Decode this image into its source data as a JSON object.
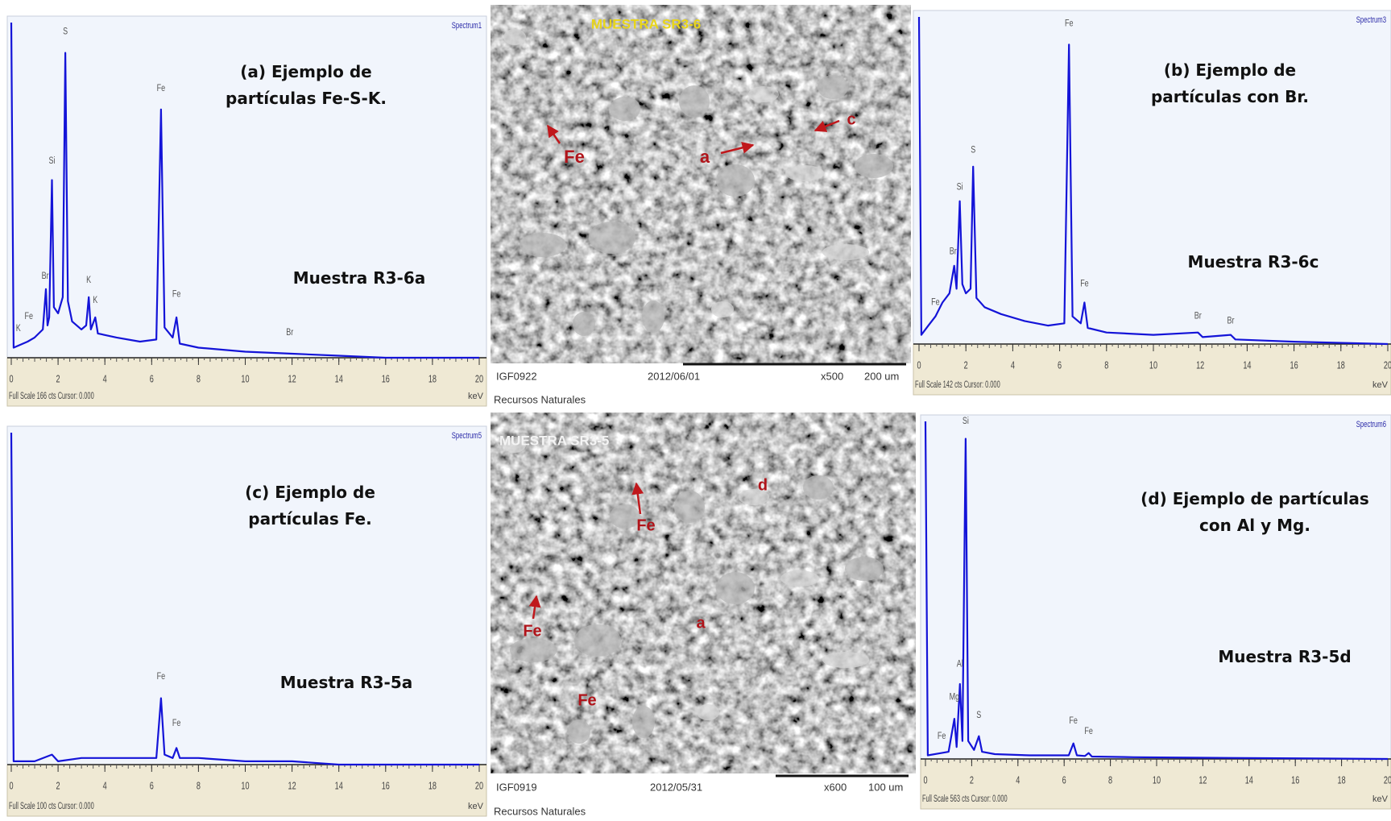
{
  "chart_data": [
    {
      "type": "line",
      "title": "(a) Ejemplo de partículas Fe-S-K.",
      "subtitle": "Muestra R3-6a",
      "spectrum_label": "Spectrum1",
      "footer": "Full Scale 166 cts Cursor: 0.000",
      "x_unit": "keV",
      "color": "#1414d8",
      "xlim": [
        0,
        20
      ],
      "xticks": [
        0,
        2,
        4,
        6,
        8,
        10,
        12,
        14,
        16,
        18,
        20
      ],
      "ylim": [
        0,
        166
      ],
      "x": [
        0,
        0.1,
        0.3,
        0.7,
        1.0,
        1.35,
        1.48,
        1.55,
        1.62,
        1.74,
        1.82,
        2.0,
        2.2,
        2.31,
        2.42,
        2.6,
        3.0,
        3.2,
        3.31,
        3.4,
        3.59,
        3.7,
        4.5,
        5.5,
        6.2,
        6.4,
        6.55,
        6.9,
        7.06,
        7.2,
        8,
        10,
        12,
        14,
        16,
        20
      ],
      "values": [
        166,
        5,
        6,
        8,
        10,
        14,
        34,
        16,
        20,
        88,
        25,
        22,
        30,
        151,
        28,
        18,
        14,
        16,
        30,
        14,
        20,
        12,
        10,
        8,
        9,
        123,
        15,
        10,
        20,
        7,
        5,
        3,
        2,
        1,
        0,
        0
      ],
      "annotations": [
        {
          "text": "K",
          "x": 0.3,
          "y": 12
        },
        {
          "text": "Fe",
          "x": 0.75,
          "y": 18
        },
        {
          "text": "Br",
          "x": 1.45,
          "y": 38
        },
        {
          "text": "Si",
          "x": 1.74,
          "y": 95
        },
        {
          "text": "S",
          "x": 2.31,
          "y": 159
        },
        {
          "text": "K",
          "x": 3.31,
          "y": 36
        },
        {
          "text": "K",
          "x": 3.59,
          "y": 26
        },
        {
          "text": "Fe",
          "x": 6.4,
          "y": 131
        },
        {
          "text": "Fe",
          "x": 7.06,
          "y": 29
        },
        {
          "text": "Br",
          "x": 11.9,
          "y": 10
        }
      ]
    },
    {
      "type": "line",
      "title": "(b) Ejemplo de partículas con Br.",
      "subtitle": "Muestra R3-6c",
      "spectrum_label": "Spectrum3",
      "footer": "Full Scale 142 cts Cursor: 0.000",
      "x_unit": "keV",
      "color": "#1414d8",
      "xlim": [
        0,
        20
      ],
      "xticks": [
        0,
        2,
        4,
        6,
        8,
        10,
        12,
        14,
        16,
        18,
        20
      ],
      "ylim": [
        0,
        142
      ],
      "x": [
        0,
        0.1,
        0.4,
        0.7,
        1.0,
        1.3,
        1.5,
        1.6,
        1.74,
        1.85,
        2.0,
        2.2,
        2.31,
        2.45,
        2.8,
        3.5,
        4.5,
        5.5,
        6.2,
        6.4,
        6.55,
        6.9,
        7.06,
        7.2,
        8,
        10,
        11.9,
        12.1,
        13.3,
        13.5,
        16,
        20
      ],
      "values": [
        142,
        4,
        8,
        12,
        18,
        22,
        34,
        24,
        62,
        26,
        22,
        24,
        77,
        20,
        16,
        13,
        10,
        8,
        9,
        130,
        12,
        9,
        18,
        7,
        5,
        4,
        5,
        3,
        4,
        2,
        1,
        0
      ],
      "annotations": [
        {
          "text": "Fe",
          "x": 0.7,
          "y": 16
        },
        {
          "text": "Br",
          "x": 1.45,
          "y": 38
        },
        {
          "text": "Si",
          "x": 1.74,
          "y": 66
        },
        {
          "text": "S",
          "x": 2.31,
          "y": 82
        },
        {
          "text": "Fe",
          "x": 6.4,
          "y": 137
        },
        {
          "text": "Fe",
          "x": 7.06,
          "y": 24
        },
        {
          "text": "Br",
          "x": 11.9,
          "y": 10
        },
        {
          "text": "Br",
          "x": 13.3,
          "y": 8
        }
      ]
    },
    {
      "type": "line",
      "title": "(c) Ejemplo de partículas Fe.",
      "subtitle": "Muestra R3-5a",
      "spectrum_label": "Spectrum5",
      "footer": "Full Scale 100 cts Cursor: 0.000",
      "x_unit": "keV",
      "color": "#1414d8",
      "xlim": [
        0,
        20
      ],
      "xticks": [
        0,
        2,
        4,
        6,
        8,
        10,
        12,
        14,
        16,
        18,
        20
      ],
      "ylim": [
        0,
        100
      ],
      "x": [
        0,
        0.1,
        1.0,
        1.74,
        2.0,
        3.0,
        4.0,
        5.0,
        6.2,
        6.4,
        6.55,
        6.9,
        7.06,
        7.2,
        8,
        10,
        12,
        14,
        20
      ],
      "values": [
        100,
        1,
        1,
        3,
        1,
        2,
        2,
        2,
        2,
        20,
        3,
        2,
        5,
        2,
        2,
        1,
        1,
        0,
        0
      ],
      "annotations": [
        {
          "text": "Fe",
          "x": 6.4,
          "y": 25
        },
        {
          "text": "Fe",
          "x": 7.06,
          "y": 11
        }
      ]
    },
    {
      "type": "line",
      "title": "(d) Ejemplo de partículas con Al y Mg.",
      "subtitle": "Muestra R3-5d",
      "spectrum_label": "Spectrum6",
      "footer": "Full Scale 563 cts Cursor: 0.000",
      "x_unit": "keV",
      "color": "#1414d8",
      "xlim": [
        0,
        20
      ],
      "xticks": [
        0,
        2,
        4,
        6,
        8,
        10,
        12,
        14,
        16,
        18,
        20
      ],
      "ylim": [
        0,
        563
      ],
      "x": [
        0,
        0.1,
        0.7,
        1.0,
        1.25,
        1.35,
        1.49,
        1.6,
        1.74,
        1.85,
        2.1,
        2.31,
        2.45,
        3.0,
        4.5,
        6.2,
        6.4,
        6.55,
        6.9,
        7.06,
        7.2,
        9,
        12,
        20
      ],
      "values": [
        563,
        6,
        10,
        12,
        67,
        20,
        125,
        30,
        534,
        30,
        15,
        38,
        12,
        8,
        6,
        6,
        26,
        6,
        5,
        10,
        4,
        3,
        2,
        0
      ],
      "annotations": [
        {
          "text": "Fe",
          "x": 0.7,
          "y": 30
        },
        {
          "text": "Mg",
          "x": 1.25,
          "y": 95
        },
        {
          "text": "Al",
          "x": 1.49,
          "y": 150
        },
        {
          "text": "Si",
          "x": 1.74,
          "y": 555
        },
        {
          "text": "S",
          "x": 2.31,
          "y": 65
        },
        {
          "text": "Fe",
          "x": 6.4,
          "y": 55
        },
        {
          "text": "Fe",
          "x": 7.06,
          "y": 38
        }
      ]
    }
  ],
  "images": [
    {
      "title": "MUESTRA SR3-6",
      "labels": [
        "Fe",
        "a",
        "c"
      ],
      "code": "IGF0922",
      "date": "2012/06/01",
      "magnification": "x500",
      "scale": "200 um",
      "institution": "Recursos Naturales"
    },
    {
      "title": "MUESTRA SR3-5",
      "labels": [
        "d",
        "Fe",
        "Fe",
        "a",
        "Fe"
      ],
      "code": "IGF0919",
      "date": "2012/05/31",
      "magnification": "x600",
      "scale": "100 um",
      "institution": "Recursos Naturales"
    }
  ]
}
